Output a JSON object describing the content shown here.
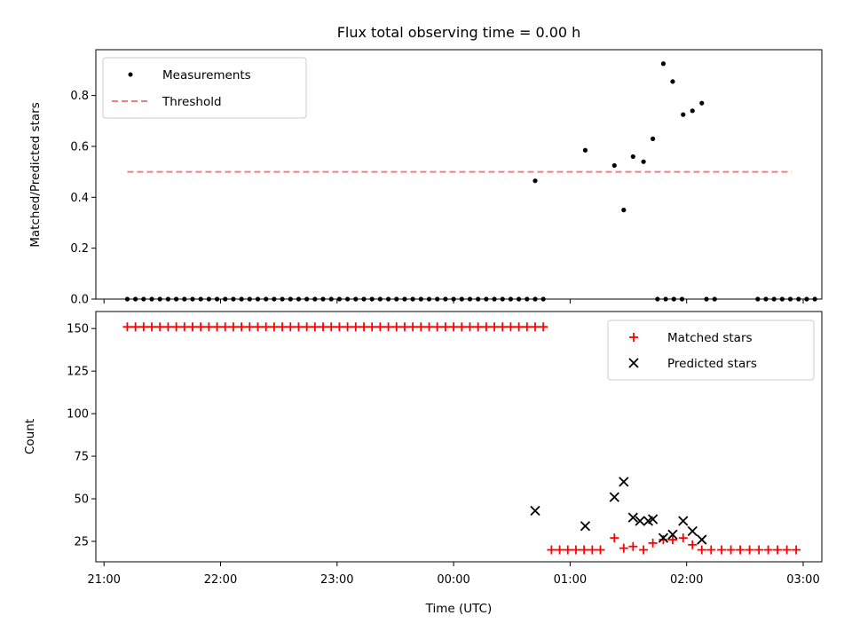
{
  "chart_data": {
    "title": "Flux total observing time = 0.00 h",
    "x_axis": {
      "label": "Time (UTC)",
      "unit": "hours after 21:00 UTC",
      "range_hours": [
        -0.07,
        6.16
      ],
      "tick_hours": [
        0,
        1,
        2,
        3,
        4,
        5,
        6
      ],
      "tick_labels": [
        "21:00",
        "22:00",
        "23:00",
        "00:00",
        "01:00",
        "02:00",
        "03:00"
      ]
    },
    "panels": [
      {
        "type": "scatter",
        "ylabel": "Matched/Predicted stars",
        "ylim": [
          0,
          0.98
        ],
        "yticks": [
          0.0,
          0.2,
          0.4,
          0.6,
          0.8
        ],
        "ytick_labels": [
          "0.0",
          "0.2",
          "0.4",
          "0.6",
          "0.8"
        ],
        "legend": {
          "placement": "upper-left",
          "entries": [
            "Measurements",
            "Threshold"
          ]
        },
        "series": [
          {
            "name": "Measurements",
            "kind": "dots",
            "color": "#000000",
            "x": [
              0.2,
              0.27,
              0.34,
              0.41,
              0.48,
              0.55,
              0.62,
              0.69,
              0.76,
              0.83,
              0.9,
              0.97,
              1.04,
              1.11,
              1.18,
              1.25,
              1.32,
              1.39,
              1.46,
              1.53,
              1.6,
              1.67,
              1.74,
              1.81,
              1.88,
              1.95,
              2.02,
              2.09,
              2.16,
              2.23,
              2.3,
              2.37,
              2.44,
              2.51,
              2.58,
              2.65,
              2.72,
              2.79,
              2.86,
              2.93,
              3.0,
              3.07,
              3.14,
              3.21,
              3.28,
              3.35,
              3.42,
              3.49,
              3.56,
              3.63,
              3.7,
              3.77,
              4.75,
              4.82,
              4.89,
              4.96,
              5.17,
              5.24,
              5.61,
              5.68,
              5.75,
              5.82,
              5.89,
              5.96,
              6.03,
              6.1,
              3.7,
              4.13,
              4.38,
              4.46,
              4.54,
              4.63,
              4.71,
              4.8,
              4.88,
              4.97,
              5.05,
              5.13
            ],
            "y": [
              0,
              0,
              0,
              0,
              0,
              0,
              0,
              0,
              0,
              0,
              0,
              0,
              0,
              0,
              0,
              0,
              0,
              0,
              0,
              0,
              0,
              0,
              0,
              0,
              0,
              0,
              0,
              0,
              0,
              0,
              0,
              0,
              0,
              0,
              0,
              0,
              0,
              0,
              0,
              0,
              0,
              0,
              0,
              0,
              0,
              0,
              0,
              0,
              0,
              0,
              0,
              0,
              0,
              0,
              0,
              0,
              0,
              0,
              0,
              0,
              0,
              0,
              0,
              0,
              0,
              0,
              0.465,
              0.585,
              0.525,
              0.35,
              0.56,
              0.54,
              0.63,
              0.925,
              0.855,
              0.725,
              0.74,
              0.77
            ]
          },
          {
            "name": "Threshold",
            "kind": "dashed-line",
            "color": "#f08080",
            "x": [
              0.2,
              5.9
            ],
            "y": [
              0.5,
              0.5
            ]
          }
        ]
      },
      {
        "type": "scatter",
        "ylabel": "Count",
        "ylim": [
          13,
          160
        ],
        "yticks": [
          25,
          50,
          75,
          100,
          125,
          150
        ],
        "ytick_labels": [
          "25",
          "50",
          "75",
          "100",
          "125",
          "150"
        ],
        "legend": {
          "placement": "upper-right",
          "entries": [
            "Matched stars",
            "Predicted stars"
          ]
        },
        "series": [
          {
            "name": "Matched stars",
            "marker": "plus",
            "color": "#ff0000",
            "x": [
              0.2,
              0.27,
              0.34,
              0.41,
              0.48,
              0.55,
              0.62,
              0.69,
              0.76,
              0.83,
              0.9,
              0.97,
              1.04,
              1.11,
              1.18,
              1.25,
              1.32,
              1.39,
              1.46,
              1.53,
              1.6,
              1.67,
              1.74,
              1.81,
              1.88,
              1.95,
              2.02,
              2.09,
              2.16,
              2.23,
              2.3,
              2.37,
              2.44,
              2.51,
              2.58,
              2.65,
              2.72,
              2.79,
              2.86,
              2.93,
              3.0,
              3.07,
              3.14,
              3.21,
              3.28,
              3.35,
              3.42,
              3.49,
              3.56,
              3.63,
              3.7,
              3.77,
              3.84,
              3.91,
              3.98,
              4.05,
              4.12,
              4.19,
              4.26,
              4.38,
              4.46,
              4.54,
              4.63,
              4.71,
              4.8,
              4.88,
              4.97,
              5.05,
              5.13,
              5.21,
              5.3,
              5.38,
              5.46,
              5.54,
              5.62,
              5.7,
              5.78,
              5.86,
              5.94
            ],
            "y": [
              151,
              151,
              151,
              151,
              151,
              151,
              151,
              151,
              151,
              151,
              151,
              151,
              151,
              151,
              151,
              151,
              151,
              151,
              151,
              151,
              151,
              151,
              151,
              151,
              151,
              151,
              151,
              151,
              151,
              151,
              151,
              151,
              151,
              151,
              151,
              151,
              151,
              151,
              151,
              151,
              151,
              151,
              151,
              151,
              151,
              151,
              151,
              151,
              151,
              151,
              151,
              151,
              20,
              20,
              20,
              20,
              20,
              20,
              20,
              27,
              21,
              22,
              20,
              24,
              26,
              26,
              27,
              23,
              20,
              20,
              20,
              20,
              20,
              20,
              20,
              20,
              20,
              20,
              20
            ]
          },
          {
            "name": "Predicted stars",
            "marker": "x",
            "color": "#000000",
            "x": [
              3.7,
              4.13,
              4.38,
              4.46,
              4.54,
              4.6,
              4.67,
              4.71,
              4.8,
              4.88,
              4.97,
              5.05,
              5.13
            ],
            "y": [
              43,
              34,
              51,
              60,
              39,
              37,
              37,
              38,
              27,
              29,
              37,
              31,
              26
            ]
          }
        ]
      }
    ]
  }
}
